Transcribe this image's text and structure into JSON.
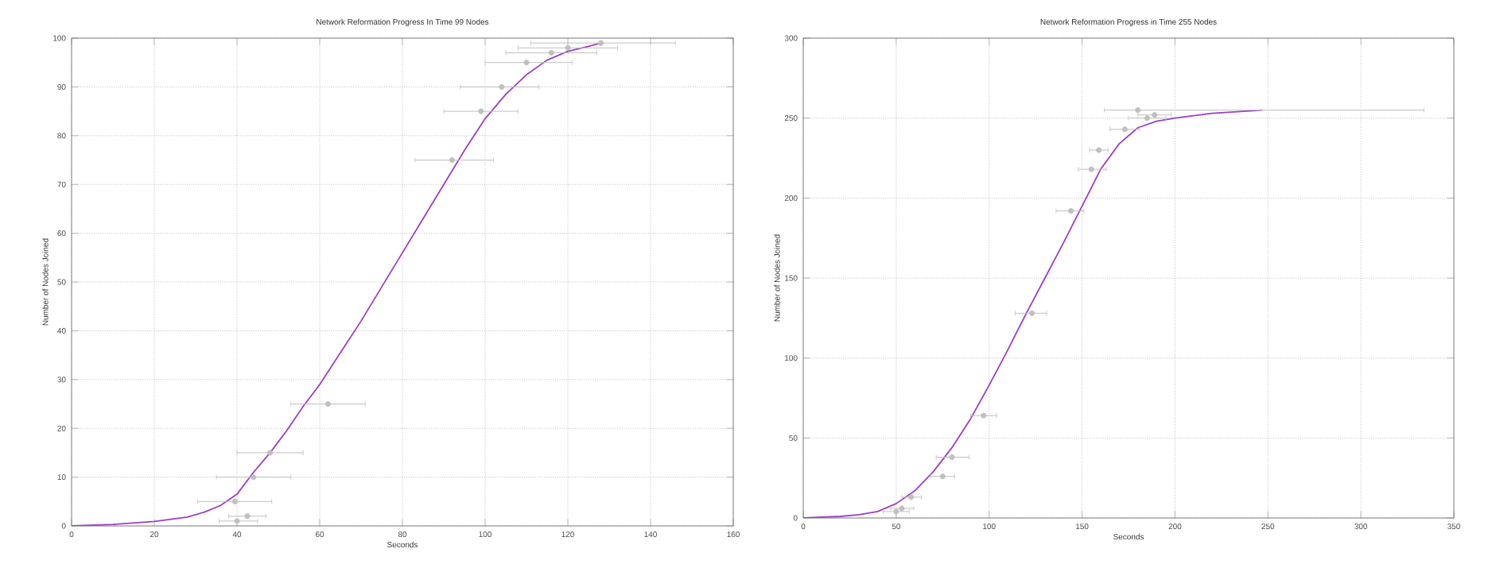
{
  "chart_data": [
    {
      "type": "line",
      "title": "Network Reformation Progress In Time 99 Nodes",
      "xlabel": "Seconds",
      "ylabel": "Number of Nodes Joined",
      "xlim": [
        0,
        160
      ],
      "ylim": [
        0,
        100
      ],
      "xticks": [
        0,
        20,
        40,
        60,
        80,
        100,
        120,
        140,
        160
      ],
      "yticks": [
        0,
        10,
        20,
        30,
        40,
        50,
        60,
        70,
        80,
        90,
        100
      ],
      "grid": true,
      "marker": "none",
      "series": [
        {
          "color": "#9b3fc6",
          "x": [
            0,
            10,
            20,
            28,
            32,
            36,
            40,
            44,
            48,
            52,
            56,
            60,
            65,
            70,
            75,
            80,
            85,
            90,
            95,
            100,
            105,
            110,
            115,
            120,
            125,
            128
          ],
          "values": [
            0,
            0.3,
            0.9,
            1.8,
            2.8,
            4.2,
            6.5,
            11,
            15,
            19.5,
            24.5,
            29,
            35.5,
            42,
            49,
            56,
            63,
            70,
            77,
            83.5,
            88.5,
            92.5,
            95.5,
            97.3,
            98.3,
            99
          ]
        },
        {
          "type": "scatter",
          "color": "#c0c0c0",
          "x": [
            40,
            42.5,
            39.5,
            44,
            48,
            62,
            92,
            99,
            104,
            110,
            116,
            120,
            128
          ],
          "values": [
            1,
            2,
            5,
            10,
            15,
            25,
            75,
            85,
            90,
            95,
            97,
            98,
            99
          ],
          "xerrors": [
            [
              35.7,
              45
            ],
            [
              38,
              47
            ],
            [
              30.5,
              48.4
            ],
            [
              35,
              53
            ],
            [
              40,
              56
            ],
            [
              53,
              71
            ],
            [
              83,
              102
            ],
            [
              90,
              108
            ],
            [
              94,
              113
            ],
            [
              100,
              121
            ],
            [
              105,
              127
            ],
            [
              108,
              132
            ],
            [
              111,
              146
            ]
          ]
        }
      ]
    },
    {
      "type": "line",
      "title": "Network Reformation Progress in Time 255 Nodes",
      "xlabel": "Seconds",
      "ylabel": "Number of Nodes Joined",
      "xlim": [
        0,
        350
      ],
      "ylim": [
        0,
        300
      ],
      "xticks": [
        0,
        50,
        100,
        150,
        200,
        250,
        300,
        350
      ],
      "yticks": [
        0,
        50,
        100,
        150,
        200,
        250,
        300
      ],
      "grid": true,
      "marker": "none",
      "series": [
        {
          "color": "#9b3fc6",
          "x": [
            0,
            20,
            30,
            40,
            50,
            60,
            70,
            80,
            90,
            100,
            110,
            120,
            130,
            140,
            150,
            160,
            170,
            180,
            190,
            200,
            220,
            247
          ],
          "values": [
            0,
            1,
            2,
            4,
            9,
            17,
            29,
            44,
            62,
            83,
            105,
            128,
            150,
            172,
            195,
            218,
            234,
            244,
            248,
            250,
            253,
            255
          ]
        },
        {
          "type": "scatter",
          "color": "#c0c0c0",
          "x": [
            50,
            53,
            58,
            75,
            80,
            97,
            123,
            144,
            155,
            159,
            173,
            185,
            189,
            180
          ],
          "values": [
            4,
            6,
            13,
            26,
            38,
            64,
            128,
            192,
            218,
            230,
            243,
            250,
            252,
            255
          ],
          "xerrors": [
            [
              43,
              57
            ],
            [
              47,
              59.5
            ],
            [
              53,
              63.5
            ],
            [
              68.6,
              81.5
            ],
            [
              71.5,
              89.4
            ],
            [
              90,
              104
            ],
            [
              114,
              131
            ],
            [
              136,
              151
            ],
            [
              148,
              163
            ],
            [
              154,
              164
            ],
            [
              165,
              181
            ],
            [
              175,
              195
            ],
            [
              180,
              198
            ],
            [
              162,
              334
            ]
          ]
        }
      ]
    }
  ]
}
